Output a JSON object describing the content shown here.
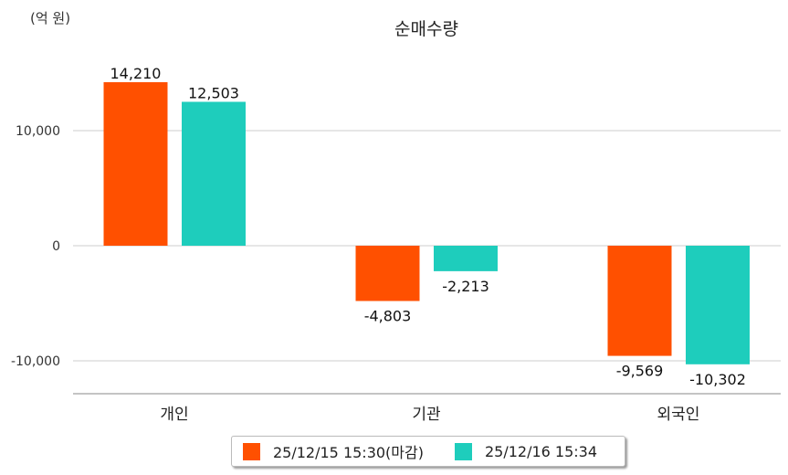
{
  "chart_data": {
    "type": "bar",
    "title": "순매수량",
    "unit_label": "(억 원)",
    "categories": [
      "개인",
      "기관",
      "외국인"
    ],
    "series": [
      {
        "name": "25/12/15 15:30(마감)",
        "color": "#ff5000",
        "values": [
          14210,
          -4803,
          -9569
        ],
        "labels": [
          "14,210",
          "-4,803",
          "-9,569"
        ]
      },
      {
        "name": "25/12/16 15:34",
        "color": "#1ecdbc",
        "values": [
          12503,
          -2213,
          -10302
        ],
        "labels": [
          "12,503",
          "-2,213",
          "-10,302"
        ]
      }
    ],
    "y_ticks": [
      10000,
      0,
      -10000
    ],
    "y_tick_labels": [
      "10,000",
      "0",
      "-10,000"
    ],
    "grid": true,
    "legend": "bottom-center"
  }
}
